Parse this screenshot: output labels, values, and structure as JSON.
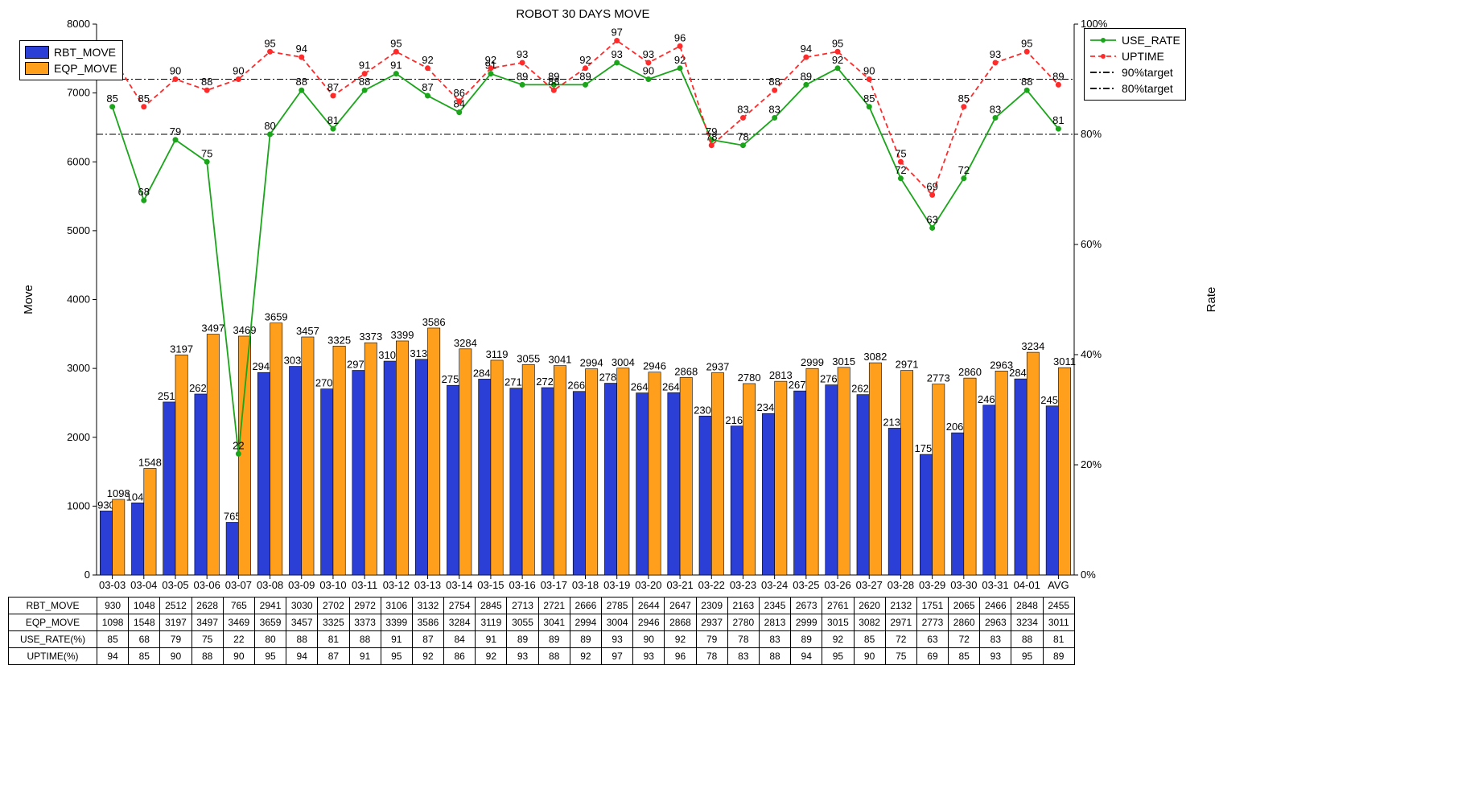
{
  "chart": {
    "title": "ROBOT 30 DAYS MOVE",
    "ylabel_left": "Move",
    "ylabel_right": "Rate",
    "y_left": {
      "min": 0,
      "max": 8000,
      "step": 1000
    },
    "y_right": {
      "min": 0,
      "max": 100,
      "step": 20,
      "suffix": "%"
    },
    "target_lines": [
      {
        "name": "90%target",
        "value": 90,
        "color": "#000000",
        "dash": "8 3 2 3"
      },
      {
        "name": "80%target",
        "value": 80,
        "color": "#000000",
        "dash": "8 3 2 3"
      }
    ],
    "categories": [
      "03-03",
      "03-04",
      "03-05",
      "03-06",
      "03-07",
      "03-08",
      "03-09",
      "03-10",
      "03-11",
      "03-12",
      "03-13",
      "03-14",
      "03-15",
      "03-16",
      "03-17",
      "03-18",
      "03-19",
      "03-20",
      "03-21",
      "03-22",
      "03-23",
      "03-24",
      "03-25",
      "03-26",
      "03-27",
      "03-28",
      "03-29",
      "03-30",
      "03-31",
      "04-01",
      "AVG"
    ],
    "bars": [
      {
        "key": "RBT_MOVE",
        "color": "#2b3fd6",
        "edge": "#000000",
        "values": [
          930,
          1048,
          2512,
          2628,
          765,
          2941,
          3030,
          2702,
          2972,
          3106,
          3132,
          2754,
          2845,
          2713,
          2721,
          2666,
          2785,
          2644,
          2647,
          2309,
          2163,
          2345,
          2673,
          2761,
          2620,
          2132,
          1751,
          2065,
          2466,
          2848,
          2455
        ]
      },
      {
        "key": "EQP_MOVE",
        "color": "#ff9f1c",
        "edge": "#000000",
        "values": [
          1098,
          1548,
          3197,
          3497,
          3469,
          3659,
          3457,
          3325,
          3373,
          3399,
          3586,
          3284,
          3119,
          3055,
          3041,
          2994,
          3004,
          2946,
          2868,
          2937,
          2780,
          2813,
          2999,
          3015,
          3082,
          2971,
          2773,
          2860,
          2963,
          3234,
          3011
        ]
      }
    ],
    "lines": [
      {
        "key": "USE_RATE",
        "label": "USE_RATE",
        "color": "#1aa51a",
        "dash": "",
        "marker": "circle",
        "marker_fill": "#1aa51a",
        "values": [
          85,
          68,
          79,
          75,
          22,
          80,
          88,
          81,
          88,
          91,
          87,
          84,
          91,
          89,
          89,
          89,
          93,
          90,
          92,
          79,
          78,
          83,
          89,
          92,
          85,
          72,
          63,
          72,
          83,
          88,
          81
        ]
      },
      {
        "key": "UPTIME",
        "label": "UPTIME",
        "color": "#ff2a2a",
        "dash": "6 4",
        "marker": "circle",
        "marker_fill": "#ff2a2a",
        "values": [
          94,
          85,
          90,
          88,
          90,
          95,
          94,
          87,
          91,
          95,
          92,
          86,
          92,
          93,
          88,
          92,
          97,
          93,
          96,
          78,
          83,
          88,
          94,
          95,
          90,
          75,
          69,
          85,
          93,
          95,
          89
        ]
      }
    ],
    "table_row_headers": [
      "RBT_MOVE",
      "EQP_MOVE",
      "USE_RATE(%)",
      "UPTIME(%)"
    ],
    "colors": {
      "background": "#ffffff",
      "axis": "#000000",
      "text": "#000000"
    },
    "fontsize": {
      "title": 15,
      "axis_label": 15,
      "tick": 13,
      "value": 13,
      "legend": 14
    }
  }
}
